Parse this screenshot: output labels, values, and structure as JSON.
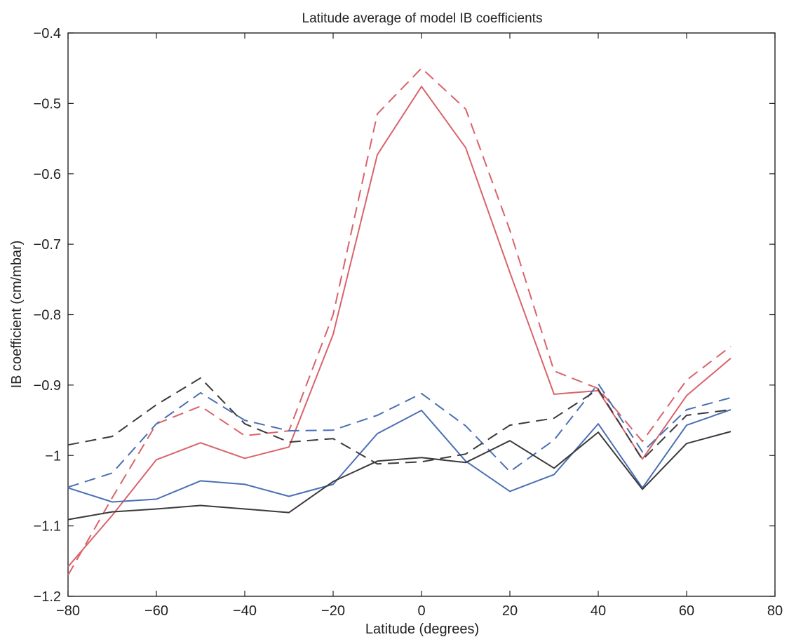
{
  "chart_data": {
    "type": "line",
    "title": "Latitude average of model IB coefficients",
    "xlabel": "Latitude (degrees)",
    "ylabel": "IB coefficient (cm/mbar)",
    "xlim": [
      -80,
      80
    ],
    "ylim": [
      -1.2,
      -0.4
    ],
    "xticks": [
      -80,
      -60,
      -40,
      -20,
      0,
      20,
      40,
      60,
      80
    ],
    "xtick_labels": [
      "−80",
      "−60",
      "−40",
      "−20",
      "0",
      "20",
      "40",
      "60",
      "80"
    ],
    "yticks": [
      -0.4,
      -0.5,
      -0.6,
      -0.7,
      -0.8,
      -0.9,
      -1,
      -1.1,
      -1.2
    ],
    "ytick_labels": [
      "−0.4",
      "−0.5",
      "−0.6",
      "−0.7",
      "−0.8",
      "−0.9",
      "−1",
      "−1.1",
      "−1.2"
    ],
    "grid": false,
    "legend": "none",
    "x": [
      -80,
      -70,
      -60,
      -50,
      -40,
      -30,
      -20,
      -10,
      0,
      10,
      20,
      30,
      40,
      50,
      60,
      70
    ],
    "series": [
      {
        "color": "#d9636a",
        "dash": "solid",
        "values": [
          -1.158,
          -1.085,
          -1.006,
          -0.982,
          -1.004,
          -0.988,
          -0.828,
          -0.573,
          -0.476,
          -0.563,
          -0.74,
          -0.913,
          -0.908,
          -1.005,
          -0.915,
          -0.862
        ]
      },
      {
        "color": "#d9636a",
        "dash": "dashed",
        "values": [
          -1.17,
          -1.06,
          -0.955,
          -0.93,
          -0.972,
          -0.965,
          -0.8,
          -0.515,
          -0.45,
          -0.508,
          -0.68,
          -0.88,
          -0.905,
          -0.98,
          -0.893,
          -0.845
        ]
      },
      {
        "color": "#4a6fb5",
        "dash": "solid",
        "values": [
          -1.046,
          -1.066,
          -1.062,
          -1.036,
          -1.041,
          -1.058,
          -1.041,
          -0.969,
          -0.936,
          -1.008,
          -1.051,
          -1.027,
          -0.955,
          -1.046,
          -0.957,
          -0.935
        ]
      },
      {
        "color": "#4a6fb5",
        "dash": "dashed",
        "values": [
          -1.045,
          -1.025,
          -0.955,
          -0.911,
          -0.95,
          -0.965,
          -0.964,
          -0.943,
          -0.912,
          -0.958,
          -1.023,
          -0.978,
          -0.898,
          -0.995,
          -0.935,
          -0.918
        ]
      },
      {
        "color": "#3a3a3a",
        "dash": "solid",
        "values": [
          -1.091,
          -1.08,
          -1.076,
          -1.071,
          -1.076,
          -1.081,
          -1.037,
          -1.008,
          -1.003,
          -1.01,
          -0.979,
          -1.018,
          -0.967,
          -1.048,
          -0.983,
          -0.966
        ]
      },
      {
        "color": "#3a3a3a",
        "dash": "dashed",
        "values": [
          -0.985,
          -0.973,
          -0.928,
          -0.89,
          -0.955,
          -0.981,
          -0.976,
          -1.012,
          -1.009,
          -0.998,
          -0.957,
          -0.947,
          -0.906,
          -1.006,
          -0.943,
          -0.935
        ]
      }
    ]
  }
}
